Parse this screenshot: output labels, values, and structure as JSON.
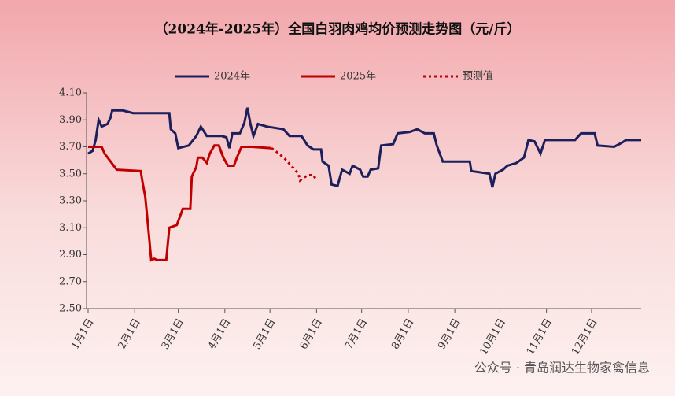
{
  "chart_data": {
    "type": "line",
    "title": "（2024年-2025年）全国白羽肉鸡均价预测走势图（元/斤）",
    "annotation": "公众号 · 青岛润达生物家禽信息",
    "xlim": [
      0,
      368
    ],
    "xticks": [
      {
        "value": 0,
        "label": "1月1日"
      },
      {
        "value": 31,
        "label": "2月1日"
      },
      {
        "value": 60,
        "label": "3月1日"
      },
      {
        "value": 91,
        "label": "4月1日"
      },
      {
        "value": 121,
        "label": "5月1日"
      },
      {
        "value": 152,
        "label": "6月1日"
      },
      {
        "value": 182,
        "label": "7月1日"
      },
      {
        "value": 213,
        "label": "8月1日"
      },
      {
        "value": 244,
        "label": "9月1日"
      },
      {
        "value": 274,
        "label": "10月1日"
      },
      {
        "value": 305,
        "label": "11月1日"
      },
      {
        "value": 335,
        "label": "12月1日"
      }
    ],
    "ylim": [
      2.5,
      4.1
    ],
    "yticks": [
      {
        "value": 2.5,
        "label": "2.50"
      },
      {
        "value": 2.7,
        "label": "2.70"
      },
      {
        "value": 2.9,
        "label": "2.90"
      },
      {
        "value": 3.1,
        "label": "3.10"
      },
      {
        "value": 3.3,
        "label": "3.30"
      },
      {
        "value": 3.5,
        "label": "3.50"
      },
      {
        "value": 3.7,
        "label": "3.70"
      },
      {
        "value": 3.9,
        "label": "3.90"
      },
      {
        "value": 4.1,
        "label": "4.10"
      }
    ],
    "series": [
      {
        "name": "2024年",
        "color": "#1b1f5c",
        "dash": "solid",
        "x": [
          0,
          3,
          5,
          7,
          9,
          13,
          15,
          16,
          23,
          30,
          54,
          55,
          58,
          60,
          67,
          72,
          75,
          79,
          89,
          92,
          94,
          96,
          101,
          104,
          106,
          108,
          110,
          113,
          119,
          130,
          134,
          142,
          146,
          150,
          155,
          156,
          160,
          162,
          166,
          169,
          174,
          176,
          181,
          183,
          186,
          188,
          193,
          195,
          203,
          206,
          214,
          219,
          224,
          230,
          232,
          236,
          254,
          255,
          267,
          269,
          271,
          276,
          279,
          285,
          290,
          293,
          297,
          301,
          304,
          324,
          328,
          337,
          339,
          350,
          355,
          358,
          368
        ],
        "values": [
          3.65,
          3.67,
          3.75,
          3.9,
          3.85,
          3.87,
          3.92,
          3.97,
          3.97,
          3.95,
          3.95,
          3.83,
          3.8,
          3.69,
          3.71,
          3.78,
          3.85,
          3.78,
          3.78,
          3.77,
          3.69,
          3.8,
          3.8,
          3.88,
          3.99,
          3.87,
          3.78,
          3.87,
          3.85,
          3.83,
          3.78,
          3.78,
          3.71,
          3.68,
          3.68,
          3.59,
          3.56,
          3.42,
          3.41,
          3.53,
          3.5,
          3.56,
          3.53,
          3.48,
          3.48,
          3.53,
          3.54,
          3.71,
          3.72,
          3.8,
          3.81,
          3.83,
          3.8,
          3.8,
          3.71,
          3.59,
          3.59,
          3.52,
          3.5,
          3.4,
          3.5,
          3.53,
          3.56,
          3.58,
          3.62,
          3.75,
          3.74,
          3.65,
          3.75,
          3.75,
          3.8,
          3.8,
          3.71,
          3.7,
          3.73,
          3.75,
          3.75
        ]
      },
      {
        "name": "2025年",
        "color": "#c00000",
        "dash": "solid",
        "x": [
          0,
          9,
          11,
          15,
          19,
          35,
          36,
          38,
          40,
          42,
          44,
          46,
          52,
          54,
          59,
          63,
          68,
          69,
          72,
          73,
          76,
          79,
          81,
          84,
          87,
          90,
          93,
          97,
          99,
          102,
          109,
          122
        ],
        "values": [
          3.7,
          3.7,
          3.65,
          3.59,
          3.53,
          3.52,
          3.45,
          3.33,
          3.1,
          2.86,
          2.87,
          2.86,
          2.86,
          3.1,
          3.12,
          3.24,
          3.24,
          3.48,
          3.55,
          3.62,
          3.62,
          3.58,
          3.65,
          3.71,
          3.71,
          3.62,
          3.56,
          3.56,
          3.62,
          3.7,
          3.7,
          3.69
        ]
      },
      {
        "name": "预测值",
        "color": "#c00000",
        "dash": "dotted",
        "x": [
          122,
          127,
          131,
          136,
          140,
          141,
          146,
          150,
          152
        ],
        "values": [
          3.69,
          3.65,
          3.61,
          3.55,
          3.5,
          3.45,
          3.49,
          3.49,
          3.45
        ]
      }
    ]
  }
}
